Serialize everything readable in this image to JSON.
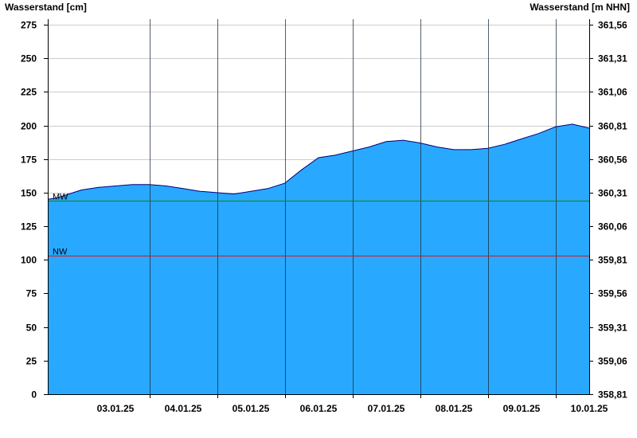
{
  "chart_data": {
    "type": "area",
    "title": "",
    "ylabel_left": "Wasserstand [cm]",
    "ylabel_right": "Wasserstand [m NHN]",
    "xlabel": "",
    "ylim_left": [
      0,
      275
    ],
    "yticks_left": [
      "0",
      "25",
      "50",
      "75",
      "100",
      "125",
      "150",
      "175",
      "200",
      "225",
      "250",
      "275"
    ],
    "ylim_right": [
      358.81,
      361.56
    ],
    "yticks_right": [
      "358,81",
      "359,06",
      "359,31",
      "359,56",
      "359,81",
      "360,06",
      "360,31",
      "360,56",
      "360,81",
      "361,06",
      "361,31",
      "361,56"
    ],
    "x_range_days": [
      "02.01.25 12:00",
      "10.01.25 12:00"
    ],
    "xticks": [
      "03.01.25",
      "04.01.25",
      "05.01.25",
      "06.01.25",
      "07.01.25",
      "08.01.25",
      "09.01.25",
      "10.01.25"
    ],
    "grid": true,
    "colors": {
      "area": "#29a8ff",
      "area_outline": "#00007a",
      "mw_line": "#0a8a0a",
      "nw_line": "#d01818",
      "grid": "#cccccc"
    },
    "reference_lines": [
      {
        "name": "MW",
        "value": 144
      },
      {
        "name": "NW",
        "value": 103
      }
    ],
    "series": [
      {
        "x": [
          "02.01.25 12:00",
          "02.01.25 15:00",
          "02.01.25 18:00",
          "02.01.25 21:00",
          "03.01.25 00:00",
          "03.01.25 06:00",
          "03.01.25 12:00",
          "03.01.25 18:00",
          "04.01.25 00:00",
          "04.01.25 06:00",
          "04.01.25 12:00",
          "04.01.25 18:00",
          "05.01.25 00:00",
          "05.01.25 06:00",
          "05.01.25 12:00",
          "05.01.25 18:00",
          "06.01.25 00:00",
          "06.01.25 06:00",
          "06.01.25 12:00",
          "06.01.25 18:00",
          "07.01.25 00:00",
          "07.01.25 06:00",
          "07.01.25 12:00",
          "07.01.25 18:00",
          "08.01.25 00:00",
          "08.01.25 06:00",
          "08.01.25 12:00",
          "08.01.25 18:00",
          "09.01.25 00:00",
          "09.01.25 06:00",
          "09.01.25 12:00",
          "09.01.25 18:00",
          "10.01.25 00:00",
          "10.01.25 06:00",
          "10.01.25 12:00"
        ],
        "values": [
          145,
          146,
          148,
          150,
          152,
          154,
          155,
          156,
          156,
          155,
          153,
          151,
          150,
          149,
          151,
          153,
          157,
          167,
          176,
          178,
          181,
          184,
          188,
          189,
          187,
          184,
          182,
          182,
          183,
          186,
          190,
          194,
          199,
          201,
          198
        ]
      }
    ]
  }
}
